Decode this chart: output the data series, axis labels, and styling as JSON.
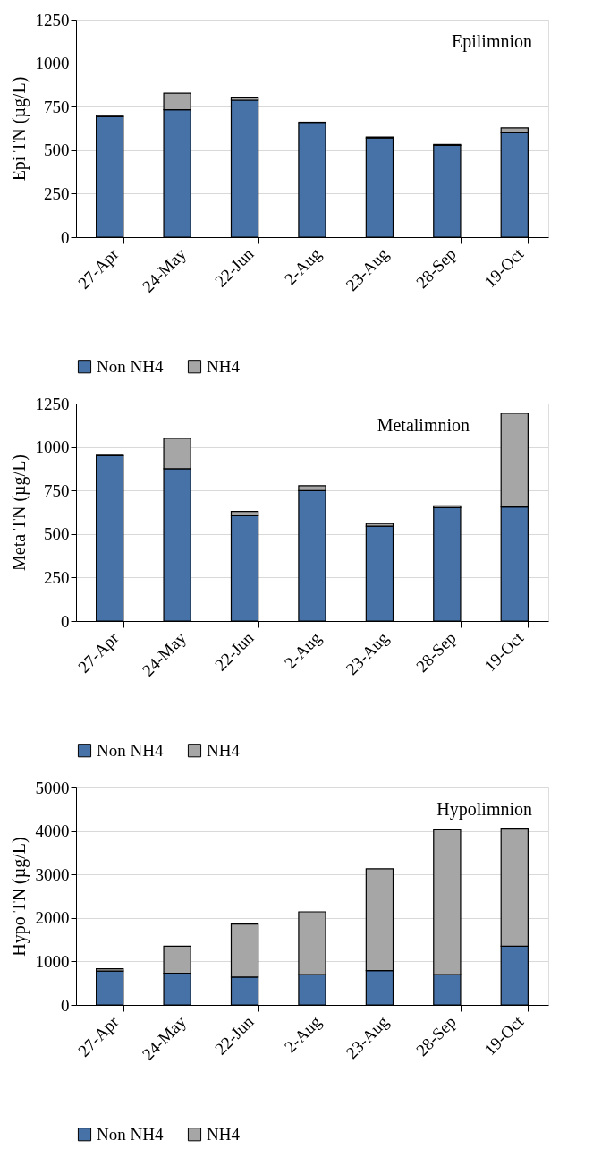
{
  "chart_data": [
    {
      "type": "bar",
      "stacked": true,
      "categories": [
        "27-Apr",
        "24-May",
        "22-Jun",
        "2-Aug",
        "23-Aug",
        "28-Sep",
        "19-Oct"
      ],
      "ylabel": "Epi TN (µg/L)",
      "annotations": [
        "Epilimnion"
      ],
      "ylim": [
        0,
        1250
      ],
      "yticks": [
        0,
        250,
        500,
        750,
        1000,
        1250
      ],
      "grid": "y",
      "legend": "bottom",
      "series": [
        {
          "name": "Non NH4",
          "color": "#4672a8",
          "values": [
            693,
            732,
            787,
            655,
            570,
            528,
            600
          ]
        },
        {
          "name": "NH4",
          "color": "#a6a6a6",
          "values": [
            7,
            96,
            17,
            6,
            6,
            5,
            28
          ]
        }
      ]
    },
    {
      "type": "bar",
      "stacked": true,
      "categories": [
        "27-Apr",
        "24-May",
        "22-Jun",
        "2-Aug",
        "23-Aug",
        "28-Sep",
        "19-Oct"
      ],
      "ylabel": "Meta TN (µg/L)",
      "annotations": [
        "Metalimnion"
      ],
      "ylim": [
        0,
        1250
      ],
      "yticks": [
        0,
        250,
        500,
        750,
        1000,
        1250
      ],
      "grid": "y",
      "legend": "bottom",
      "series": [
        {
          "name": "Non NH4",
          "color": "#4672a8",
          "values": [
            950,
            875,
            605,
            749,
            545,
            651,
            655
          ]
        },
        {
          "name": "NH4",
          "color": "#a6a6a6",
          "values": [
            7,
            175,
            24,
            28,
            15,
            11,
            539
          ]
        }
      ]
    },
    {
      "type": "bar",
      "stacked": true,
      "categories": [
        "27-Apr",
        "24-May",
        "22-Jun",
        "2-Aug",
        "23-Aug",
        "28-Sep",
        "19-Oct"
      ],
      "ylabel": "Hypo  TN (µg/L)",
      "annotations": [
        "Hypolimnion"
      ],
      "ylim": [
        0,
        5000
      ],
      "yticks": [
        0,
        1000,
        2000,
        3000,
        4000,
        5000
      ],
      "grid": "y",
      "legend": "bottom",
      "series": [
        {
          "name": "Non NH4",
          "color": "#4672a8",
          "values": [
            780,
            730,
            640,
            700,
            790,
            700,
            1350
          ]
        },
        {
          "name": "NH4",
          "color": "#a6a6a6",
          "values": [
            50,
            620,
            1220,
            1440,
            2340,
            3340,
            2710
          ]
        }
      ]
    }
  ]
}
